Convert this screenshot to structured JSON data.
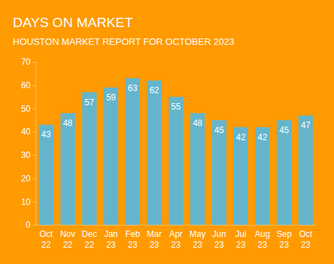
{
  "chart_data": {
    "type": "bar",
    "title": "DAYS ON MARKET",
    "subtitle": "HOUSTON MARKET REPORT FOR OCTOBER 2023",
    "categories": [
      "Oct 22",
      "Nov 22",
      "Dec 22",
      "Jan 23",
      "Feb 23",
      "Mar 23",
      "Apr 23",
      "May 23",
      "Jun 23",
      "Jul 23",
      "Aug 23",
      "Sep 23",
      "Oct 23"
    ],
    "values": [
      43,
      48,
      57,
      59,
      63,
      62,
      55,
      48,
      45,
      42,
      42,
      45,
      47
    ],
    "color": "#64b5cc",
    "ylim": [
      0,
      70
    ],
    "yticks": [
      0,
      10,
      20,
      30,
      40,
      50,
      60,
      70
    ],
    "grid": false,
    "data_labels": true
  }
}
